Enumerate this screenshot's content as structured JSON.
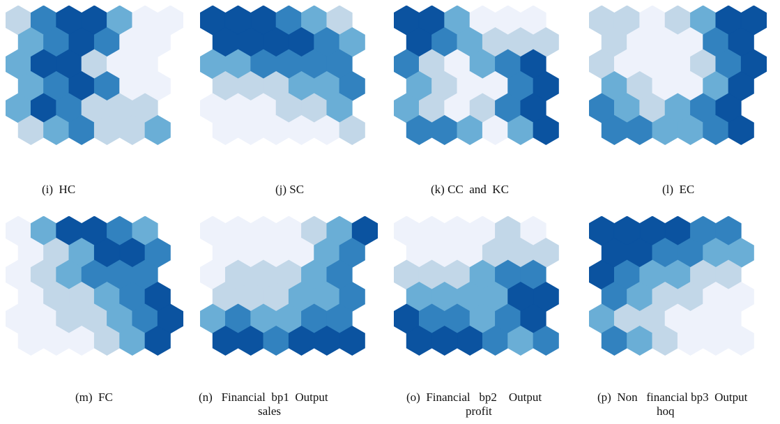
{
  "palette": [
    "#eef2fb",
    "#c2d7e8",
    "#6aaed6",
    "#3282bf",
    "#0b53a0"
  ],
  "panels": [
    {
      "id": "i",
      "caption": "(i)  HC",
      "levels": [
        [
          1,
          3,
          4,
          4,
          2,
          0,
          0
        ],
        [
          2,
          3,
          4,
          3,
          0,
          0
        ],
        [
          2,
          4,
          4,
          1,
          0,
          0
        ],
        [
          2,
          3,
          4,
          3,
          0,
          0
        ],
        [
          2,
          4,
          3,
          1,
          1,
          1
        ],
        [
          1,
          2,
          3,
          1,
          1,
          2
        ]
      ]
    },
    {
      "id": "j",
      "caption": "(j) SC",
      "levels": [
        [
          4,
          4,
          4,
          3,
          2,
          1
        ],
        [
          4,
          4,
          4,
          4,
          3,
          2
        ],
        [
          2,
          2,
          3,
          3,
          3,
          3
        ],
        [
          1,
          1,
          1,
          2,
          2,
          3
        ],
        [
          0,
          0,
          0,
          1,
          1,
          2
        ],
        [
          0,
          0,
          0,
          0,
          0,
          1
        ]
      ]
    },
    {
      "id": "k",
      "caption": "(k) CC  and  KC",
      "levels": [
        [
          4,
          4,
          2,
          0,
          0,
          0
        ],
        [
          4,
          3,
          2,
          1,
          1,
          1
        ],
        [
          3,
          1,
          0,
          2,
          3,
          4
        ],
        [
          2,
          1,
          0,
          0,
          3,
          4
        ],
        [
          2,
          1,
          0,
          1,
          3,
          4
        ],
        [
          3,
          3,
          2,
          0,
          2,
          4
        ]
      ]
    },
    {
      "id": "l",
      "caption": "(l)  EC",
      "levels": [
        [
          1,
          1,
          0,
          1,
          2,
          4,
          4
        ],
        [
          1,
          0,
          0,
          0,
          3,
          4
        ],
        [
          1,
          0,
          0,
          0,
          1,
          3,
          4
        ],
        [
          2,
          1,
          0,
          0,
          2,
          4
        ],
        [
          3,
          2,
          1,
          2,
          3,
          4
        ],
        [
          3,
          3,
          2,
          2,
          3,
          4
        ]
      ]
    },
    {
      "id": "m",
      "caption": "(m)  FC",
      "levels": [
        [
          0,
          2,
          4,
          4,
          3,
          2
        ],
        [
          0,
          1,
          2,
          4,
          4,
          3
        ],
        [
          0,
          1,
          2,
          3,
          3,
          3
        ],
        [
          0,
          1,
          1,
          2,
          3,
          4
        ],
        [
          0,
          0,
          1,
          1,
          2,
          3,
          4
        ],
        [
          0,
          0,
          0,
          1,
          2,
          4
        ]
      ]
    },
    {
      "id": "n",
      "caption": "(n)   Financial  bp1  Output\n                    sales",
      "levels": [
        [
          0,
          0,
          0,
          0,
          1,
          2,
          4
        ],
        [
          0,
          0,
          0,
          0,
          2,
          3
        ],
        [
          0,
          1,
          1,
          1,
          2,
          3
        ],
        [
          1,
          1,
          1,
          2,
          2,
          3
        ],
        [
          2,
          3,
          2,
          2,
          3,
          3
        ],
        [
          4,
          4,
          3,
          4,
          4,
          4
        ]
      ]
    },
    {
      "id": "o",
      "caption": "(o)  Financial   bp2    Output\n                    profit",
      "levels": [
        [
          0,
          0,
          0,
          0,
          1,
          0
        ],
        [
          0,
          0,
          0,
          1,
          1,
          1
        ],
        [
          1,
          1,
          1,
          2,
          3,
          3
        ],
        [
          2,
          2,
          2,
          2,
          4,
          4
        ],
        [
          4,
          3,
          3,
          2,
          3,
          4
        ],
        [
          4,
          4,
          4,
          3,
          2,
          3
        ]
      ]
    },
    {
      "id": "p",
      "caption": "(p)  Non   financial bp3  Output\n                    hoq",
      "levels": [
        [
          4,
          4,
          4,
          4,
          3,
          3
        ],
        [
          4,
          4,
          3,
          3,
          2,
          2
        ],
        [
          4,
          3,
          2,
          2,
          1,
          1
        ],
        [
          3,
          2,
          1,
          1,
          0,
          0
        ],
        [
          2,
          1,
          1,
          0,
          0,
          0
        ],
        [
          3,
          2,
          1,
          0,
          0,
          0
        ]
      ]
    }
  ]
}
